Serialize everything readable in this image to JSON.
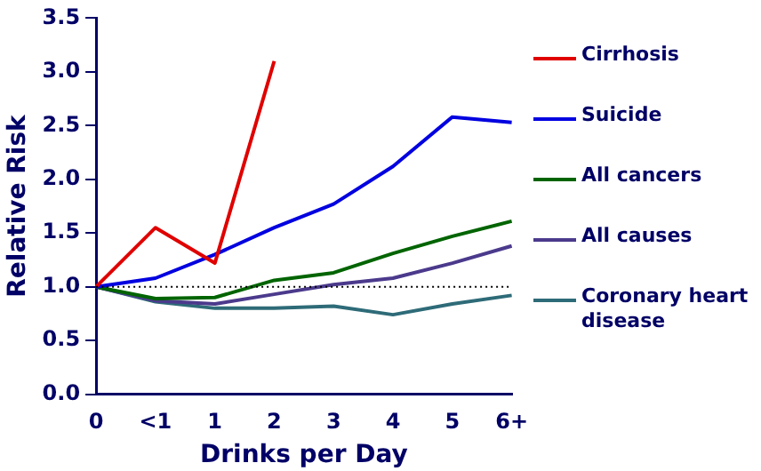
{
  "chart_data": {
    "type": "line",
    "xlabel": "Drinks per Day",
    "ylabel": "Relative Risk",
    "categories": [
      "0",
      "<1",
      "1",
      "2",
      "3",
      "4",
      "5",
      "6+"
    ],
    "series": [
      {
        "name": "Cirrhosis",
        "color": "#e00000",
        "values": [
          1.0,
          1.55,
          1.22,
          3.1,
          null,
          null,
          null,
          null
        ]
      },
      {
        "name": "Suicide",
        "color": "#0000e0",
        "values": [
          1.0,
          1.08,
          1.3,
          1.55,
          1.77,
          2.12,
          2.58,
          2.53
        ]
      },
      {
        "name": "All cancers",
        "color": "#006400",
        "values": [
          1.0,
          0.89,
          0.9,
          1.06,
          1.13,
          1.31,
          1.47,
          1.61
        ]
      },
      {
        "name": "All causes",
        "color": "#4b3a8c",
        "values": [
          1.0,
          0.87,
          0.84,
          0.93,
          1.02,
          1.08,
          1.22,
          1.38
        ]
      },
      {
        "name": "Coronary heart disease",
        "color": "#2e6b78",
        "values": [
          1.0,
          0.86,
          0.8,
          0.8,
          0.82,
          0.74,
          0.84,
          0.92
        ]
      }
    ],
    "ylim": [
      0,
      3.5
    ],
    "yticks": [
      {
        "value": 0,
        "label": "0.0"
      },
      {
        "value": 0.5,
        "label": "0.5"
      },
      {
        "value": 1,
        "label": "1.0"
      },
      {
        "value": 1.5,
        "label": "1.5"
      },
      {
        "value": 2,
        "label": "2.0"
      },
      {
        "value": 2.5,
        "label": "2.5"
      },
      {
        "value": 3,
        "label": "3.0"
      },
      {
        "value": 3.5,
        "label": "3.5"
      }
    ],
    "ref_lines": [
      {
        "axis": "y",
        "value": 1,
        "color": "#000000",
        "line_style": "dotted"
      }
    ],
    "grid": false,
    "legend": "right",
    "marker": "none",
    "line_style": "solid"
  }
}
